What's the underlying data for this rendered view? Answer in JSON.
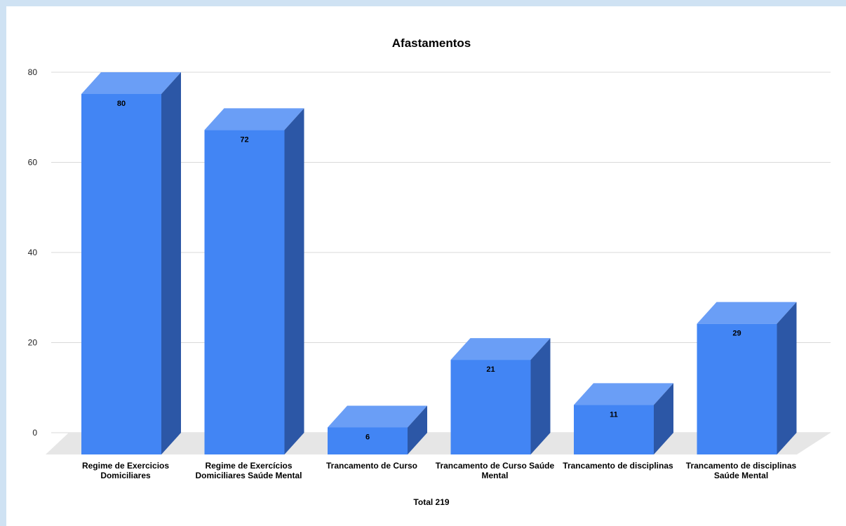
{
  "chart_data": {
    "type": "bar",
    "style": "3d",
    "title": "Afastamentos",
    "xlabel": "Total 219",
    "ylabel": "",
    "ylim": [
      0,
      80
    ],
    "yticks": [
      0,
      20,
      40,
      60,
      80
    ],
    "grid": true,
    "legend": "none",
    "categories": [
      [
        "Regime de Exercicios",
        "Domiciliares"
      ],
      [
        "Regime de Exercícios",
        "Domiciliares Saúde Mental"
      ],
      [
        "Trancamento de Curso"
      ],
      [
        "Trancamento de Curso Saúde",
        "Mental"
      ],
      [
        "Trancamento de disciplinas"
      ],
      [
        "Trancamento de disciplinas",
        "Saúde Mental"
      ]
    ],
    "values": [
      80,
      72,
      6,
      21,
      11,
      29
    ],
    "colors": {
      "front": "#4285f4",
      "top": "#6a9ef6",
      "side": "#2c57a6",
      "floor": "#e6e6e6",
      "grid": "#d9d9d9"
    }
  }
}
